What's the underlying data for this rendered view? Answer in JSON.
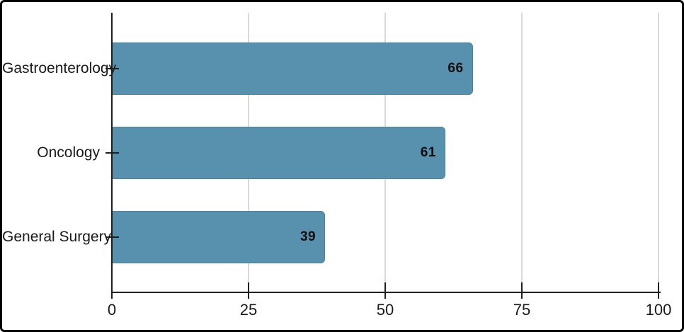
{
  "chart_data": {
    "type": "bar",
    "orientation": "horizontal",
    "title": "",
    "xlabel": "",
    "ylabel": "",
    "categories": [
      "Gastroenterology",
      "Oncology",
      "General Surgery"
    ],
    "values": [
      66,
      61,
      39
    ],
    "value_labels": [
      "66",
      "61",
      "39"
    ],
    "xlim": [
      0,
      100
    ],
    "xticks": [
      "0",
      "25",
      "50",
      "75",
      "100"
    ],
    "grid": "vertical-gridlines-on",
    "legend": "none",
    "colors": {
      "bar_fill": "#5891ad",
      "bar_border": "#4d82a0",
      "gridline": "#d9d9d9",
      "axis": "#1f1f1f",
      "text": "#1a1a1a",
      "value_label_text": "#0d0d0d",
      "background": "#ffffff",
      "frame_border": "#000000"
    }
  }
}
